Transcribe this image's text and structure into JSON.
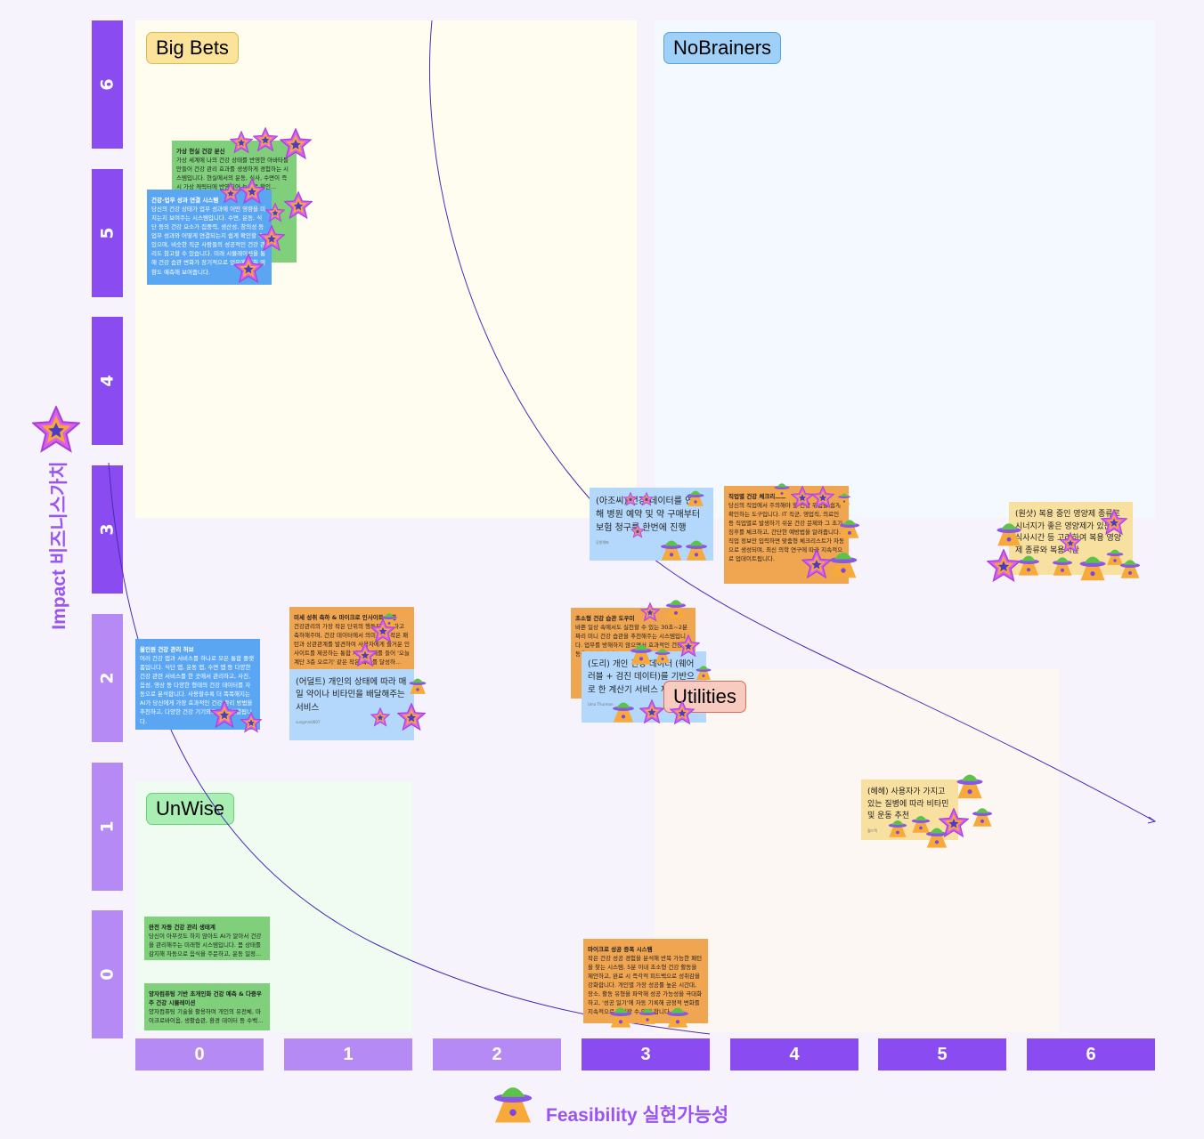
{
  "y_axis": {
    "title": "Impact 비즈니스가치",
    "ticks": [
      "6",
      "5",
      "4",
      "3",
      "2",
      "1",
      "0"
    ]
  },
  "x_axis": {
    "title": "Feasibility 실현가능성",
    "ticks": [
      "0",
      "1",
      "2",
      "3",
      "4",
      "5",
      "6"
    ]
  },
  "quadrants": {
    "big_bets": "Big Bets",
    "no_brainers": "NoBrainers",
    "unwise": "UnWise",
    "utilities": "Utilities"
  },
  "colors": {
    "axis_dark": "#8a4cf0",
    "axis_light": "#b68af4",
    "curve": "#4a2bb5"
  },
  "icons": {
    "impact": "star-icon",
    "feasibility": "ufo-icon"
  },
  "notes": [
    {
      "title": "가상 현실 건강 분신",
      "body": "가상 세계에 나의 건강 상태를 반영한 아바타를 만들어 건강 관리 효과를 생생하게 경험하는 시스템입니다. 현실에서의 운동, 식사, 수면이 즉시 가상 캐릭터에 반영되어 눈으로 확인..."
    },
    {
      "title": "건강-업무 성과 연결 시스템",
      "body": "당신의 건강 상태가 업무 성과에 어떤 영향을 미치는지 보여주는 시스템입니다. 수면, 운동, 식단 등의 건강 요소가 집중력, 생산성, 창의성 등 업무 성과와 어떻게 연결되는지 쉽게 확인할 수 있으며, 비슷한 직군 사람들의 성공적인 건강 관리도 참고할 수 있습니다. 미래 시뮬레이션을 통해 건강 습관 변화가 장기적으로 업무에 미칠 영향도 예측해 보여줍니다."
    },
    {
      "title": "",
      "body": "(아조씨) 건강 데이터를 연동해 병원 예약 및 약 구매부터 보험 청구를 한번에 진행",
      "author": "당원해짜"
    },
    {
      "title": "직업별 건강 체크리스트",
      "body": "당신의 직업에서 주의해야 할 건강 위험을 쉽게 확인하는 도구입니다. IT 직군, 영업직, 의료인 등 직업별로 발생하기 쉬운 건강 문제와 그 초기 징후를 체크하고, 간단한 예방법을 알려줍니다. 직업 정보만 입력하면 맞춤형 체크리스트가 자동으로 생성되며, 최신 의학 연구에 따라 지속적으로 업데이트됩니다."
    },
    {
      "title": "",
      "body": "(원샷) 복용 중인 영양제 종류로 시너지가 좋은 영양제가 있는지, 식사시간 등 고려하여 복용 영양제 종류와 복용시간"
    },
    {
      "title": "미세 성취 축하 & 마이크로 인사이트 엔진",
      "body": "건강관리의 가장 작은 단위의 행동도 인식하고 축하해주며, 건강 데이터에서 의미 있는 작은 패턴과 상관관계를 발견하여 사용자에게 즐거운 인사이트를 제공하는 통합 시스템. 예를 들어 '오늘 계단 3층 오르기' 같은 작은 목표를 달성하..."
    },
    {
      "title": "올인원 건강 관리 허브",
      "body": "여러 건강 앱과 서비스를 하나로 모은 통합 플랫폼입니다. 식단 앱, 운동 앱, 수면 앱 등 다양한 건강 관련 서비스를 한 곳에서 관리하고, 사진, 음성, 영상 등 다양한 형태의 건강 데이터를 자동으로 분석합니다. 사용할수록 더 똑똑해지는 AI가 당신에게 가장 효과적인 건강 관리 방법을 추천하고, 다양한 건강 기기와도 쉽게 연결됩니다."
    },
    {
      "title": "",
      "body": "(어덜트) 개인의 상태에 따라 매일 약이나 비타민을 배달해주는 서비스",
      "author": "sungmin0607"
    },
    {
      "title": "초소형 건강 습관 도우미",
      "body": "바쁜 일상 속에서도 실천할 수 있는 30초~2분 짜리 미니 건강 습관을 추천해주는 시스템입니다. 업무를 방해하지 않으면서 효과적인 건강 행동을 제안합니다..."
    },
    {
      "title": "",
      "body": "(도리) 개인 건강 데이터 (웨어러블 + 검진 데이터)를 기반으로 한 계산기 서비스 제공",
      "author": "Uma Thurman"
    },
    {
      "title": "",
      "body": "(헤헤) 사용자가 가지고 있는 질병에 따라 비타민 및 운동 추천",
      "author": "월드맥"
    },
    {
      "title": "완전 자동 건강 관리 생태계",
      "body": "당신이 아무것도 하지 않아도 AI가 알아서 건강을 관리해주는 미래형 시스템입니다. 몸 상태를 감지해 자동으로 음식을 주문하고, 운동 일정..."
    },
    {
      "title": "양자컴퓨팅 기반 초개인화 건강 예측 & 다중우주 건강 시뮬레이션",
      "body": "양자컴퓨팅 기술을 활용하여 개인의 유전체, 마이크로바이옴, 생활습관, 환경 데이터 등 수백..."
    },
    {
      "title": "마이크로 성공 증폭 시스템",
      "body": "작은 건강 성공 경험을 분석해 반복 가능한 패턴을 찾는 시스템. 5분 이내 초소형 건강 활동을 제안하고, 완료 시 즉각적 피드백으로 성취감을 강화합니다. 개인별 가장 성공률 높은 시간대, 장소, 활동 유형을 파악해 성공 가능성을 극대화하고, '성공 일기'에 자동 기록해 긍정적 변화를 지속적으로 확인할 수 있게 합니다."
    }
  ]
}
